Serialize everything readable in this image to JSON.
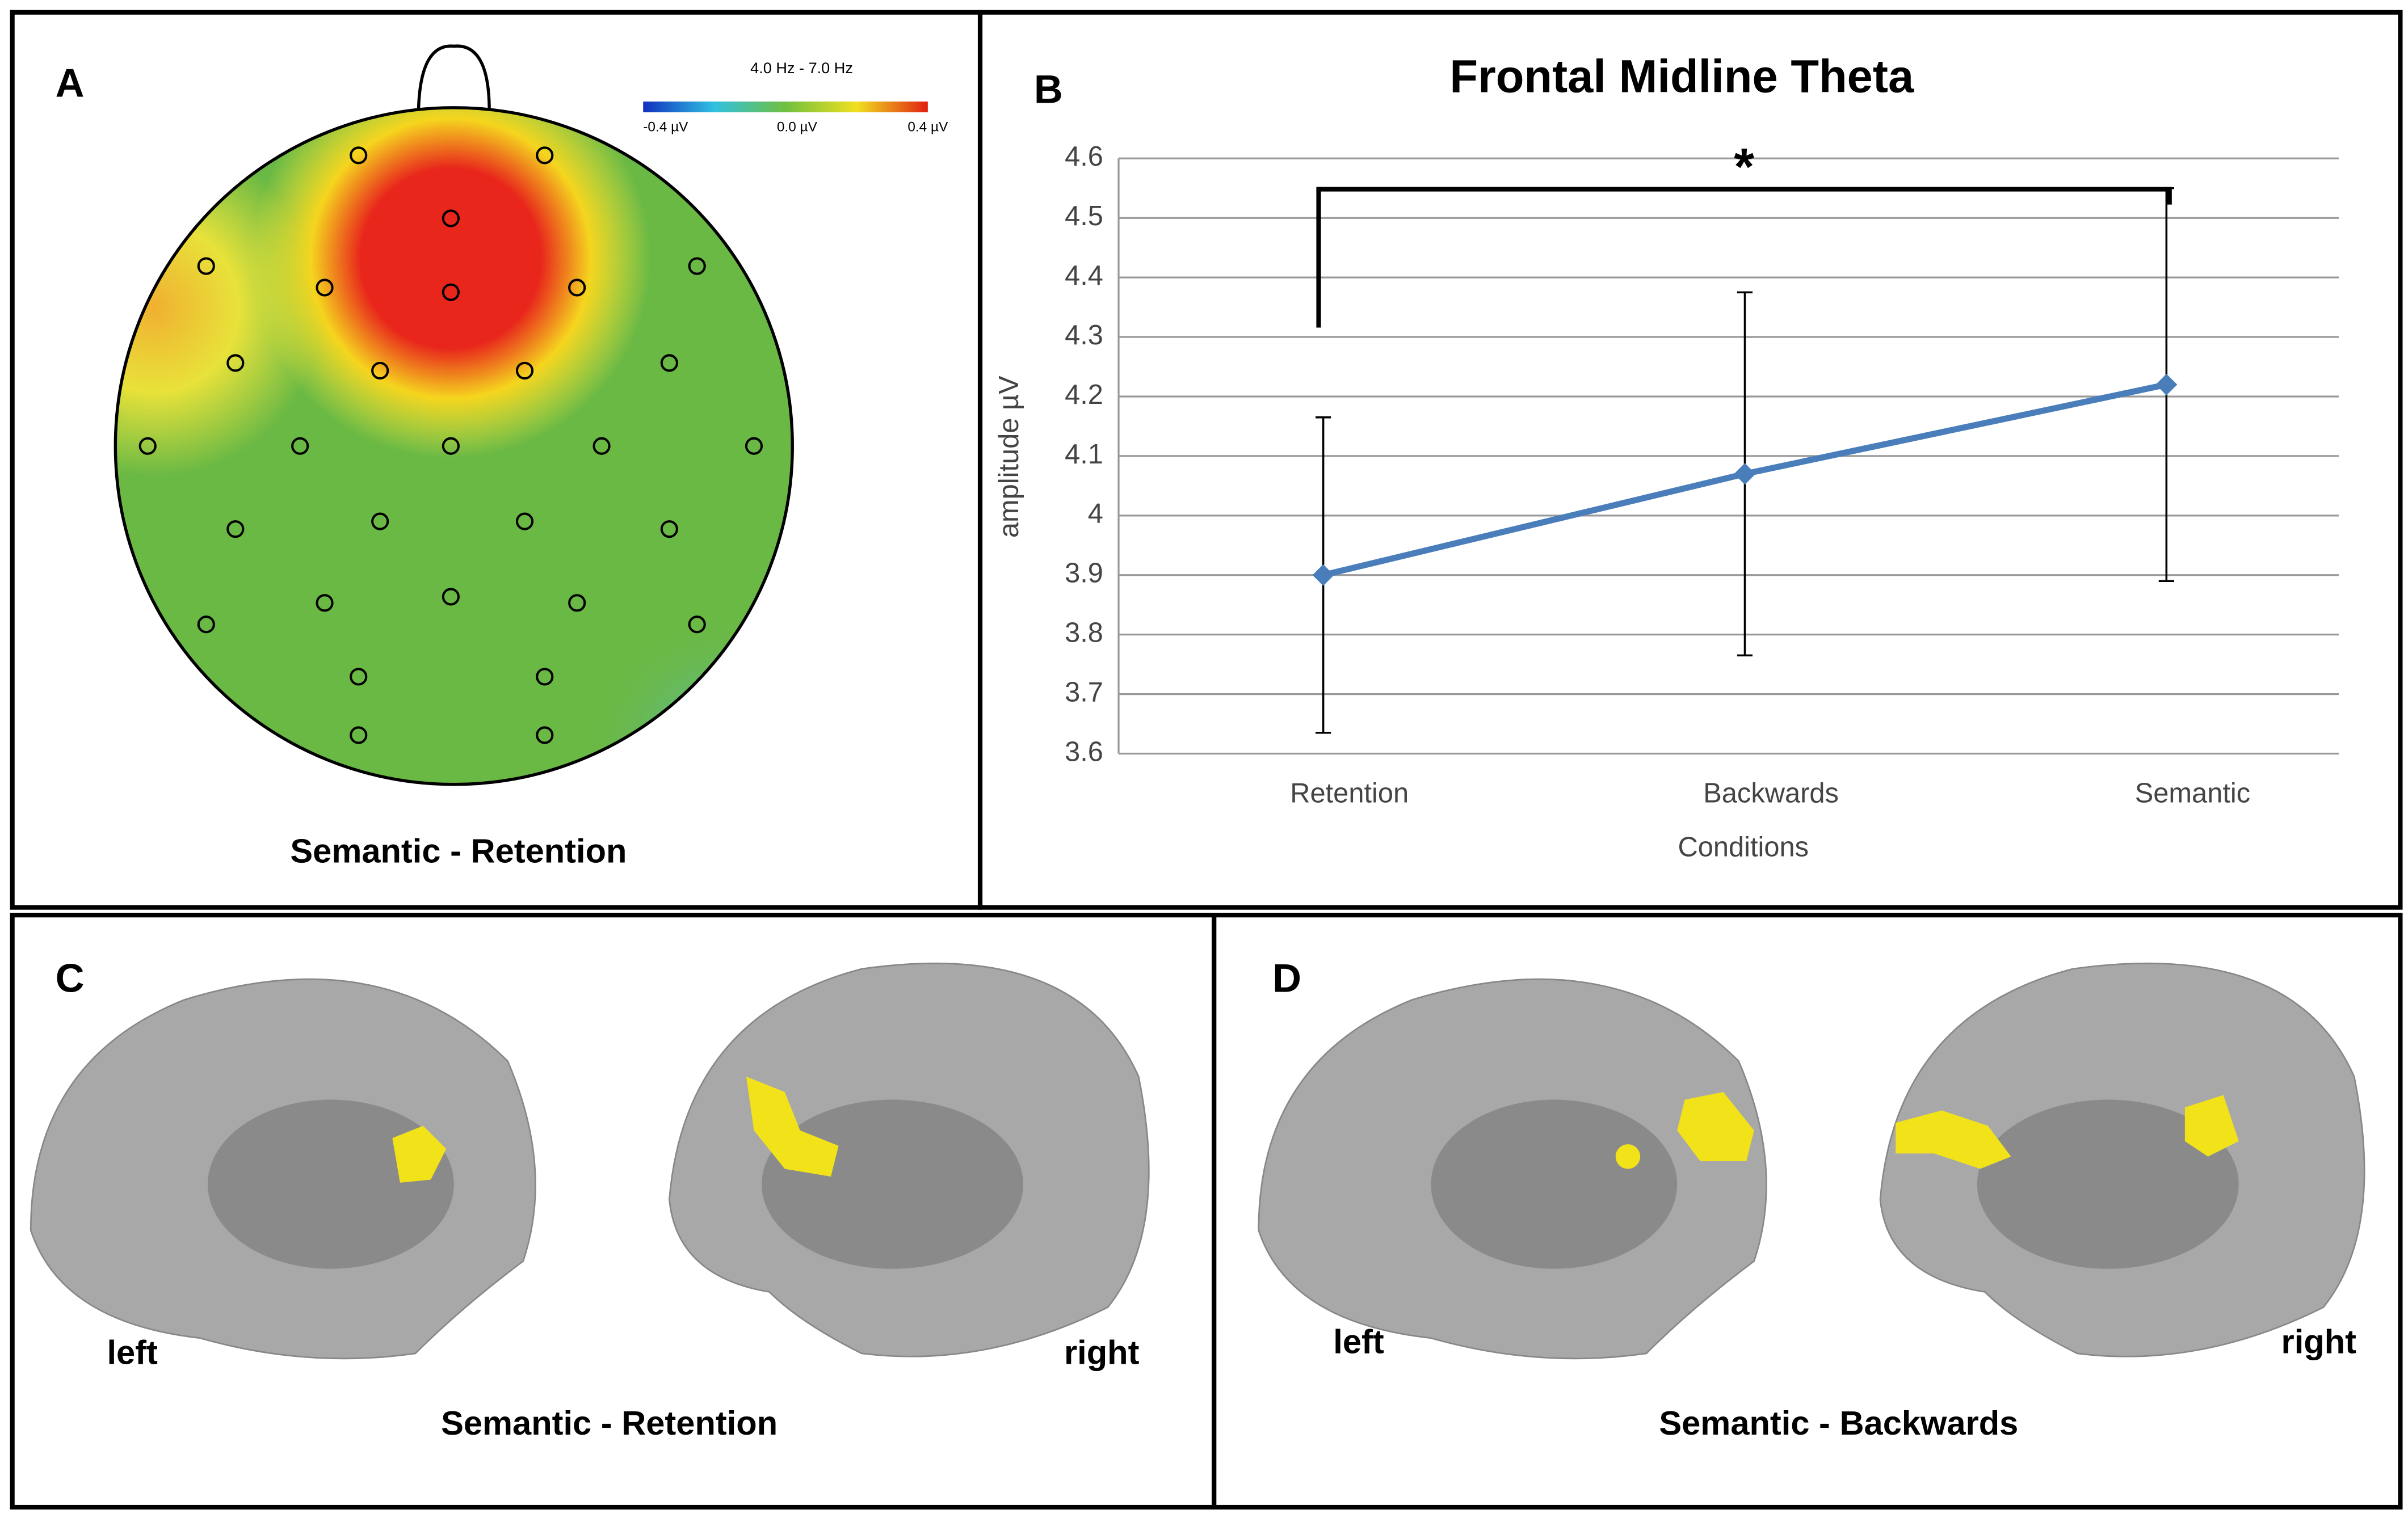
{
  "panel_a": {
    "label": "A",
    "scale_title": "4.0 Hz - 7.0 Hz",
    "scale_ticks": [
      "-0.4 µV",
      "0.0 µV",
      "0.4 µV"
    ],
    "caption": "Semantic - Retention"
  },
  "chart_data": {
    "type": "line",
    "label": "B",
    "title": "Frontal Midline Theta",
    "xlabel": "Conditions",
    "ylabel": "amplitude µV",
    "categories": [
      "Retention",
      "Backwards",
      "Semantic"
    ],
    "values": [
      3.9,
      4.07,
      4.22
    ],
    "errors": [
      0.265,
      0.305,
      0.33
    ],
    "color": "#4a7ebb",
    "ylim": [
      3.6,
      4.6
    ],
    "yticks": [
      3.6,
      3.7,
      3.8,
      3.9,
      4,
      4.1,
      4.2,
      4.3,
      4.4,
      4.5,
      4.6
    ],
    "grid": true,
    "annotation": "*"
  },
  "panel_c": {
    "label": "C",
    "left": "left",
    "right": "right",
    "caption": "Semantic - Retention"
  },
  "panel_d": {
    "label": "D",
    "left": "left",
    "right": "right",
    "caption": "Semantic - Backwards"
  }
}
